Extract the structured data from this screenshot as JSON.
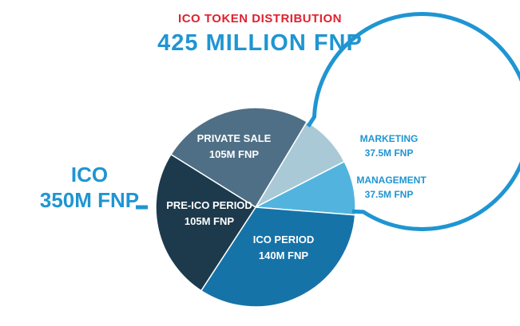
{
  "colors": {
    "subtitle": "#e0212e",
    "title": "#1f95d2",
    "bracket": "#1f95d2",
    "group_label": "#1f95d2",
    "outside_label": "#1f95d2",
    "inside_label": "#ffffff"
  },
  "chart_data": {
    "type": "pie",
    "subtitle": "ICO TOKEN DISTRIBUTION",
    "title": "425 MILLION FNP",
    "total": 425,
    "slices": [
      {
        "key": "private",
        "label": "PRIVATE SALE",
        "value_label": "105M FNP",
        "value": 105,
        "color": "#4f6f86",
        "placement": "inside"
      },
      {
        "key": "marketing",
        "label": "MARKETING",
        "value_label": "37.5M FNP",
        "value": 37.5,
        "color": "#a9c9d6",
        "placement": "outside"
      },
      {
        "key": "management",
        "label": "MANAGEMENT",
        "value_label": "37.5M FNP",
        "value": 37.5,
        "color": "#52b4de",
        "placement": "outside"
      },
      {
        "key": "ico",
        "label": "ICO PERIOD",
        "value_label": "140M FNP",
        "value": 140,
        "color": "#1673a8",
        "placement": "inside"
      },
      {
        "key": "preico",
        "label": "PRE-ICO PERIOD",
        "value_label": "105M FNP",
        "value": 105,
        "color": "#1c3a4c",
        "placement": "inside"
      }
    ],
    "group": {
      "label": "ICO",
      "value_label": "350M FNP",
      "value": 350,
      "members": [
        "private",
        "ico",
        "preico"
      ]
    }
  }
}
